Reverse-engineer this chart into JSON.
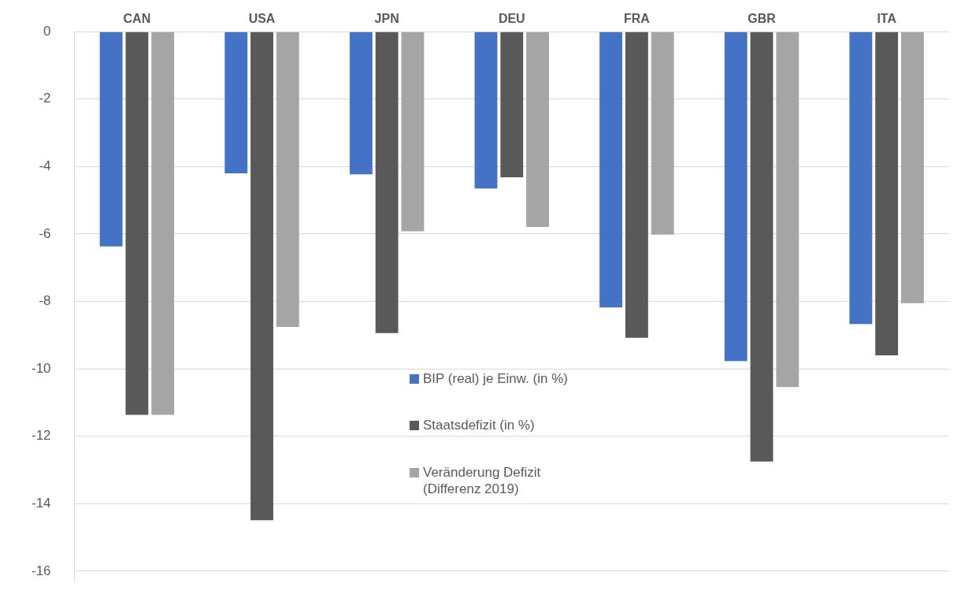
{
  "chart_data": {
    "type": "bar",
    "categories": [
      "CAN",
      "USA",
      "JPN",
      "DEU",
      "FRA",
      "GBR",
      "ITA"
    ],
    "series": [
      {
        "name": "BIP (real) je Einw. (in %)",
        "color": "#4472c4",
        "values": [
          -6.37,
          -4.2,
          -4.23,
          -4.65,
          -8.18,
          -9.77,
          -8.67
        ]
      },
      {
        "name": "Staatsdefizit (in %)",
        "color": "#595959",
        "values": [
          -11.36,
          -14.49,
          -8.94,
          -4.32,
          -9.08,
          -12.75,
          -9.6
        ]
      },
      {
        "name": "Veränderung Defizit (Differenz 2019)",
        "color": "#a5a5a5",
        "values": [
          -11.36,
          -8.76,
          -5.92,
          -5.79,
          -6.02,
          -10.54,
          -8.05
        ]
      }
    ],
    "ylim": [
      -16.3,
      0
    ],
    "yticks": [
      0,
      -2,
      -4,
      -6,
      -8,
      -10,
      -12,
      -14,
      -16
    ],
    "grid": "y",
    "legend": "center"
  }
}
